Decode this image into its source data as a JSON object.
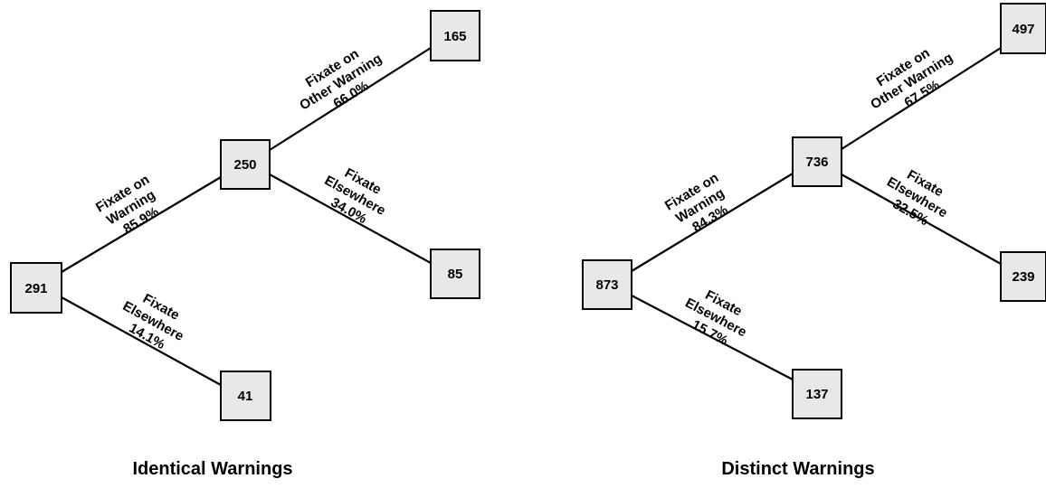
{
  "trees": [
    {
      "caption": "Identical Warnings",
      "nodes": {
        "root": "291",
        "warning": "250",
        "elsewhere": "41",
        "other_warning": "165",
        "warning_elsewhere": "85"
      },
      "edges": {
        "root_to_warning": {
          "lines": [
            "Fixate on",
            "Warning"
          ],
          "percent": "85.9%"
        },
        "root_to_elsewhere": {
          "lines": [
            "Fixate",
            "Elsewhere"
          ],
          "percent": "14.1%"
        },
        "warning_to_other": {
          "lines": [
            "Fixate on",
            "Other Warning"
          ],
          "percent": "66.0%"
        },
        "warning_to_elsewhere": {
          "lines": [
            "Fixate",
            "Elsewhere"
          ],
          "percent": "34.0%"
        }
      }
    },
    {
      "caption": "Distinct Warnings",
      "nodes": {
        "root": "873",
        "warning": "736",
        "elsewhere": "137",
        "other_warning": "497",
        "warning_elsewhere": "239"
      },
      "edges": {
        "root_to_warning": {
          "lines": [
            "Fixate on",
            "Warning"
          ],
          "percent": "84.3%"
        },
        "root_to_elsewhere": {
          "lines": [
            "Fixate",
            "Elsewhere"
          ],
          "percent": "15.7%"
        },
        "warning_to_other": {
          "lines": [
            "Fixate on",
            "Other Warning"
          ],
          "percent": "67.5%"
        },
        "warning_to_elsewhere": {
          "lines": [
            "Fixate",
            "Elsewhere"
          ],
          "percent": "32.5%"
        }
      }
    }
  ]
}
